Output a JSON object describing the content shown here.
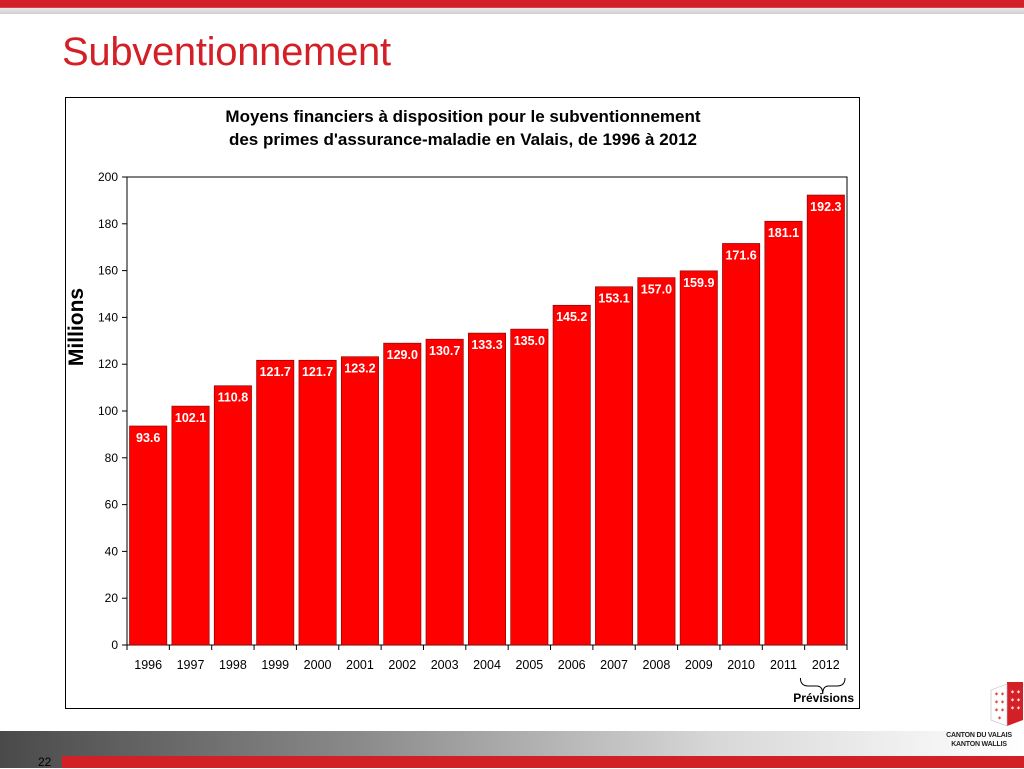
{
  "slide": {
    "title": "Subventionnement",
    "page_number": "22",
    "logo_line1": "CANTON DU VALAIS",
    "logo_line2": "KANTON WALLIS"
  },
  "colors": {
    "accent": "#d31f26",
    "bar": "#ff0000",
    "bar_edge": "#7a0000"
  },
  "chart_data": {
    "type": "bar",
    "title": "Moyens financiers à disposition pour le subventionnement des primes d'assurance-maladie en Valais, de 1996 à 2012",
    "title_lines": [
      "Moyens financiers à disposition pour le subventionnement",
      "des primes d'assurance-maladie en Valais, de 1996 à 2012"
    ],
    "xlabel": "",
    "ylabel": "Millions",
    "categories": [
      "1996",
      "1997",
      "1998",
      "1999",
      "2000",
      "2001",
      "2002",
      "2003",
      "2004",
      "2005",
      "2006",
      "2007",
      "2008",
      "2009",
      "2010",
      "2011",
      "2012"
    ],
    "values": [
      93.6,
      102.1,
      110.8,
      121.7,
      121.7,
      123.2,
      129.0,
      130.7,
      133.3,
      135.0,
      145.2,
      153.1,
      157.0,
      159.9,
      171.6,
      181.1,
      192.3
    ],
    "value_labels": [
      "93.6",
      "102.1",
      "110.8",
      "121.7",
      "121.7",
      "123.2",
      "129.0",
      "130.7",
      "133.3",
      "135.0",
      "145.2",
      "153.1",
      "157.0",
      "159.9",
      "171.6",
      "181.1",
      "192.3"
    ],
    "ylim": [
      0,
      200
    ],
    "yticks": [
      0,
      20,
      40,
      60,
      80,
      100,
      120,
      140,
      160,
      180,
      200
    ],
    "grid": false,
    "annotation": {
      "text": "Prévisions",
      "categories": [
        "2011",
        "2012"
      ]
    }
  }
}
